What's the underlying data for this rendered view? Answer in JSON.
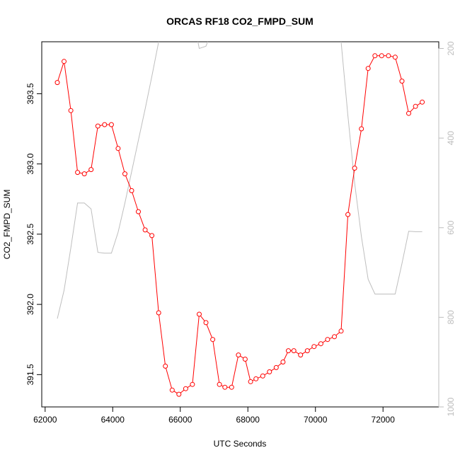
{
  "chart_data": {
    "type": "line",
    "title": "ORCAS RF18 CO2_FMPD_SUM",
    "xlabel": "UTC Seconds",
    "ylabel": "CO2_FMPD_SUM",
    "xlim": [
      61900,
      73650
    ],
    "ylim": [
      391.27,
      393.87
    ],
    "y2lim": [
      1000,
      185
    ],
    "x_ticks": [
      62000,
      64000,
      66000,
      68000,
      70000,
      72000
    ],
    "y_ticks": [
      391.5,
      392.0,
      392.5,
      393.0,
      393.5
    ],
    "y_tick_labels": [
      "391.5",
      "392.0",
      "392.5",
      "393.0",
      "393.5"
    ],
    "y2_ticks": [
      200,
      400,
      600,
      800,
      1000
    ],
    "colors": {
      "series": "#ff0000",
      "secondary": "#bebebe",
      "axis": "#000000",
      "secondary_axis": "#bdbdbd"
    },
    "series": [
      {
        "x": [
          62360,
          62560,
          62760,
          62960,
          63160,
          63360,
          63560,
          63760,
          63960,
          64160,
          64360,
          64560,
          64760,
          64960,
          65160,
          65360,
          65560,
          65760,
          65960,
          66160,
          66360,
          66560,
          66760,
          66960,
          67160,
          67320,
          67520,
          67720,
          67920,
          68080,
          68240,
          68440,
          68640,
          68840,
          69040,
          69200,
          69360,
          69560,
          69760,
          69960,
          70160,
          70360,
          70560,
          70760,
          70960,
          71160,
          71360,
          71560,
          71760,
          71960,
          72160,
          72360,
          72560,
          72760,
          72960,
          73160
        ],
        "values": [
          393.58,
          393.73,
          393.38,
          392.94,
          392.93,
          392.96,
          393.27,
          393.28,
          393.28,
          393.11,
          392.93,
          392.81,
          392.66,
          392.53,
          392.49,
          391.94,
          391.56,
          391.39,
          391.36,
          391.4,
          391.43,
          391.93,
          391.87,
          391.75,
          391.43,
          391.41,
          391.41,
          391.64,
          391.61,
          391.45,
          391.47,
          391.49,
          391.52,
          391.55,
          391.59,
          391.67,
          391.67,
          391.64,
          391.67,
          391.7,
          391.72,
          391.75,
          391.77,
          391.81,
          392.64,
          392.97,
          393.25,
          393.68,
          393.77,
          393.77,
          393.77,
          393.76,
          393.59,
          393.36,
          393.41,
          393.44
        ]
      }
    ],
    "secondary_series": {
      "x": [
        62360,
        62560,
        62760,
        62960,
        63160,
        63360,
        63560,
        63760,
        63960,
        64160,
        64360,
        64560,
        64760,
        64960,
        65160,
        65360,
        65560,
        65760,
        65960,
        66160,
        66360,
        66560,
        66760,
        66960,
        67160,
        67320,
        67520,
        67720,
        67920,
        68080,
        68240,
        68440,
        68640,
        68840,
        69040,
        69200,
        69360,
        69560,
        69760,
        69960,
        70160,
        70360,
        70560,
        70760,
        70960,
        71160,
        71360,
        71560,
        71760,
        71960,
        72160,
        72360,
        72560,
        72760,
        72960,
        73160
      ],
      "values": [
        803,
        740,
        645,
        545,
        545,
        558,
        655,
        657,
        657,
        610,
        545,
        475,
        405,
        335,
        262,
        185,
        130,
        105,
        95,
        100,
        120,
        200,
        195,
        155,
        125,
        110,
        100,
        100,
        100,
        100,
        100,
        100,
        100,
        100,
        100,
        100,
        100,
        100,
        100,
        100,
        100,
        100,
        100,
        185,
        350,
        500,
        620,
        715,
        748,
        748,
        748,
        748,
        680,
        608,
        609,
        609
      ]
    }
  }
}
